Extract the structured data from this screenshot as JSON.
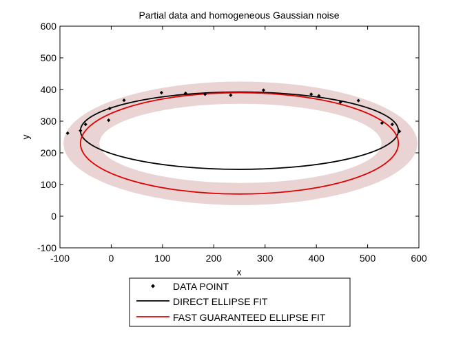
{
  "chart_data": {
    "type": "scatter",
    "title": "Partial data and homogeneous Gaussian noise",
    "xlabel": "x",
    "ylabel": "y",
    "xlim": [
      -100,
      600
    ],
    "ylim": [
      -100,
      600
    ],
    "xticks": [
      -100,
      0,
      100,
      200,
      300,
      400,
      500,
      600
    ],
    "yticks": [
      -100,
      0,
      100,
      200,
      300,
      400,
      500,
      600
    ],
    "grid": false,
    "legend_position": "below plot",
    "series": [
      {
        "name": "DATA POINT",
        "kind": "points",
        "color": "#000000",
        "x": [
          -85,
          -60,
          -50,
          -5,
          -3,
          25,
          98,
          145,
          183,
          233,
          297,
          390,
          405,
          447,
          482,
          528,
          548,
          562
        ],
        "y": [
          262,
          270,
          290,
          303,
          340,
          366,
          390,
          388,
          385,
          382,
          398,
          385,
          380,
          360,
          365,
          294,
          290,
          268
        ]
      },
      {
        "name": "DIRECT ELLIPSE FIT",
        "kind": "ellipse",
        "color": "#000000",
        "center": [
          250,
          270
        ],
        "semi_axes": [
          310,
          122
        ]
      },
      {
        "name": "FAST GUARANTEED ELLIPSE FIT",
        "kind": "ellipse",
        "color": "#e00000",
        "center": [
          250,
          230
        ],
        "semi_axes": [
          310,
          160
        ]
      }
    ],
    "uncertainty_band": {
      "color": "#e9d3d3",
      "center": [
        252,
        230
      ],
      "outer_semi_axes": [
        345,
        195
      ],
      "inner_semi_axes": [
        275,
        125
      ]
    }
  }
}
